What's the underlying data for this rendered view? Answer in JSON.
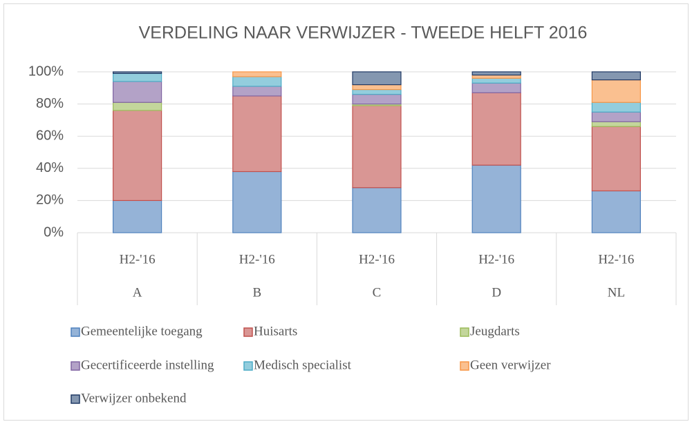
{
  "chart_data": {
    "type": "stacked_bar",
    "title": "VERDELING NAAR VERWIJZER - TWEEDE HELFT 2016",
    "categories": [
      "A",
      "B",
      "C",
      "D",
      "NL"
    ],
    "period_labels": [
      "H2-'16",
      "H2-'16",
      "H2-'16",
      "H2-'16",
      "H2-'16"
    ],
    "ylim": [
      0,
      100
    ],
    "yticks": [
      {
        "value": 0,
        "label": "0%"
      },
      {
        "value": 20,
        "label": "20%"
      },
      {
        "value": 40,
        "label": "40%"
      },
      {
        "value": 60,
        "label": "60%"
      },
      {
        "value": 80,
        "label": "80%"
      },
      {
        "value": 100,
        "label": "100%"
      }
    ],
    "grid": true,
    "legend": "bottom",
    "series": [
      {
        "name": "Gemeentelijke toegang",
        "color": "#95b3d7",
        "edge": "#4f81bd",
        "values": [
          20,
          38,
          28,
          42,
          26
        ]
      },
      {
        "name": "Huisarts",
        "color": "#d99694",
        "edge": "#c0504d",
        "values": [
          56,
          47,
          51,
          45,
          40
        ]
      },
      {
        "name": "Jeugdarts",
        "color": "#c3d69b",
        "edge": "#9bbb59",
        "values": [
          5,
          0,
          1,
          0,
          3
        ]
      },
      {
        "name": "Gecertificeerde instelling",
        "color": "#b3a2c7",
        "edge": "#8064a2",
        "values": [
          13,
          6,
          6,
          6,
          6
        ]
      },
      {
        "name": "Medisch specialist",
        "color": "#93cddd",
        "edge": "#4bacc6",
        "values": [
          5,
          6,
          3,
          3,
          6
        ]
      },
      {
        "name": "Geen verwijzer",
        "color": "#fac090",
        "edge": "#f79646",
        "values": [
          0,
          3,
          3,
          2,
          14
        ]
      },
      {
        "name": "Verwijzer onbekend",
        "color": "#8497b0",
        "edge": "#1f3864",
        "values": [
          1,
          0,
          8,
          2,
          5
        ]
      }
    ]
  }
}
